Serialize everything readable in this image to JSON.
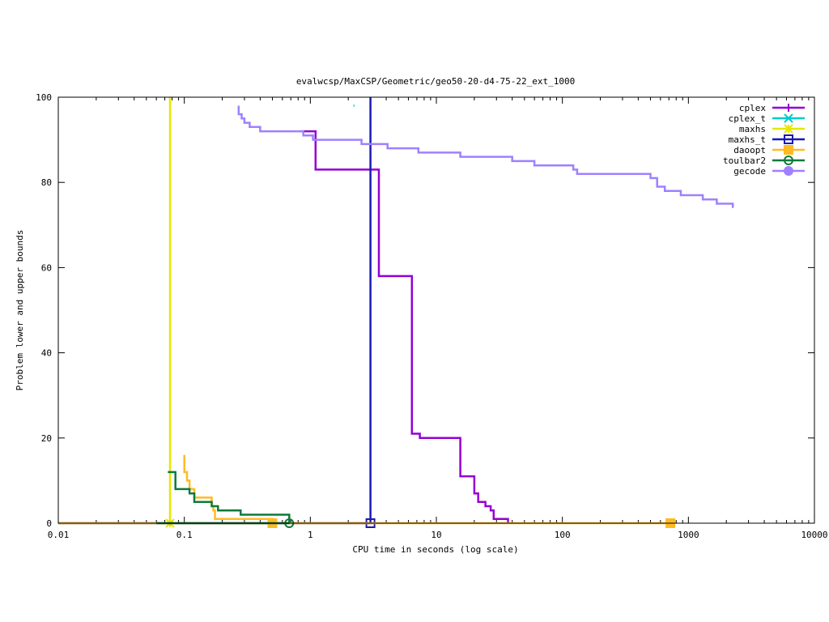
{
  "chart_data": {
    "type": "line",
    "title": "evalwcsp/MaxCSP/Geometric/geo50-20-d4-75-22_ext_1000",
    "xlabel": "CPU time in seconds (log scale)",
    "ylabel": "Problem lower and upper bounds",
    "xscale": "log",
    "xlim": [
      0.01,
      10000
    ],
    "ylim": [
      0,
      100
    ],
    "xticks": [
      {
        "value": 0.01,
        "label": "0.01"
      },
      {
        "value": 0.1,
        "label": "0.1"
      },
      {
        "value": 1,
        "label": "1"
      },
      {
        "value": 10,
        "label": "10"
      },
      {
        "value": 100,
        "label": "100"
      },
      {
        "value": 1000,
        "label": "1000"
      },
      {
        "value": 10000,
        "label": "10000"
      }
    ],
    "yticks": [
      {
        "value": 0,
        "label": "0"
      },
      {
        "value": 20,
        "label": "20"
      },
      {
        "value": 40,
        "label": "40"
      },
      {
        "value": 60,
        "label": "60"
      },
      {
        "value": 80,
        "label": "80"
      },
      {
        "value": 100,
        "label": "100"
      }
    ],
    "legend_position": "top-right",
    "series": [
      {
        "name": "cplex",
        "color": "#9400d3",
        "marker": "plus",
        "points": [
          [
            0.85,
            92
          ],
          [
            1.1,
            92
          ],
          [
            1.1,
            83
          ],
          [
            3.5,
            83
          ],
          [
            3.5,
            58
          ],
          [
            6.4,
            58
          ],
          [
            6.4,
            21
          ],
          [
            7.4,
            21
          ],
          [
            7.4,
            20
          ],
          [
            15.5,
            20
          ],
          [
            15.5,
            11
          ],
          [
            20,
            11
          ],
          [
            20,
            7
          ],
          [
            21.5,
            7
          ],
          [
            21.5,
            5
          ],
          [
            24.5,
            5
          ],
          [
            24.5,
            4
          ],
          [
            27,
            4
          ],
          [
            27,
            3
          ],
          [
            28.5,
            3
          ],
          [
            28.5,
            1
          ],
          [
            37,
            1
          ],
          [
            37,
            0
          ]
        ],
        "markers": []
      },
      {
        "name": "cplex_t",
        "color": "#00cccc",
        "marker": "x",
        "points": [
          [
            2.2,
            98
          ],
          [
            2.24,
            98
          ]
        ],
        "markers": []
      },
      {
        "name": "maxhs",
        "color": "#e6e600",
        "marker": "star",
        "points": [
          [
            0.077,
            100
          ],
          [
            0.077,
            0
          ]
        ],
        "markers": [
          [
            0.077,
            0
          ]
        ]
      },
      {
        "name": "maxhs_t",
        "color": "#1a1ab3",
        "marker": "square",
        "points": [
          [
            0.01,
            0
          ],
          [
            3.0,
            0
          ],
          [
            3.0,
            100
          ]
        ],
        "markers": [
          [
            3.0,
            0
          ]
        ]
      },
      {
        "name": "daoopt",
        "color": "#ffbb22",
        "marker": "filled-square",
        "points": [
          [
            0.01,
            0
          ],
          [
            720,
            0
          ]
        ],
        "extra_segments": [
          [
            [
              0.1,
              16
            ],
            [
              0.1,
              12
            ],
            [
              0.105,
              12
            ],
            [
              0.105,
              10
            ],
            [
              0.11,
              10
            ],
            [
              0.11,
              8
            ],
            [
              0.12,
              8
            ],
            [
              0.12,
              6
            ],
            [
              0.165,
              6
            ],
            [
              0.165,
              4
            ],
            [
              0.17,
              4
            ],
            [
              0.17,
              3
            ],
            [
              0.175,
              3
            ],
            [
              0.175,
              1
            ],
            [
              0.5,
              1
            ],
            [
              0.5,
              0
            ]
          ]
        ],
        "markers": [
          [
            0.5,
            0
          ],
          [
            720,
            0
          ]
        ]
      },
      {
        "name": "toulbar2",
        "color": "#0f7a3a",
        "marker": "circle",
        "points": [
          [
            0.074,
            12
          ],
          [
            0.085,
            12
          ],
          [
            0.085,
            8
          ],
          [
            0.11,
            8
          ],
          [
            0.11,
            7
          ],
          [
            0.12,
            7
          ],
          [
            0.12,
            5
          ],
          [
            0.165,
            5
          ],
          [
            0.165,
            4
          ],
          [
            0.185,
            4
          ],
          [
            0.185,
            3
          ],
          [
            0.28,
            3
          ],
          [
            0.28,
            2
          ],
          [
            0.68,
            2
          ],
          [
            0.68,
            0
          ]
        ],
        "extra_segments": [
          [
            [
              0.06,
              0
            ],
            [
              0.68,
              0
            ]
          ]
        ],
        "markers": [
          [
            0.68,
            0
          ]
        ]
      },
      {
        "name": "gecode",
        "color": "#9f80ff",
        "marker": "filled-circle",
        "points": [
          [
            0.27,
            98
          ],
          [
            0.27,
            96
          ],
          [
            0.285,
            96
          ],
          [
            0.285,
            95
          ],
          [
            0.3,
            95
          ],
          [
            0.3,
            94
          ],
          [
            0.33,
            94
          ],
          [
            0.33,
            93
          ],
          [
            0.4,
            93
          ],
          [
            0.4,
            92
          ],
          [
            0.88,
            92
          ],
          [
            0.88,
            91
          ],
          [
            1.05,
            91
          ],
          [
            1.05,
            90
          ],
          [
            2.55,
            90
          ],
          [
            2.55,
            89
          ],
          [
            4.1,
            89
          ],
          [
            4.1,
            88
          ],
          [
            7.2,
            88
          ],
          [
            7.2,
            87
          ],
          [
            15.5,
            87
          ],
          [
            15.5,
            86
          ],
          [
            40,
            86
          ],
          [
            40,
            85
          ],
          [
            60,
            85
          ],
          [
            60,
            84
          ],
          [
            122,
            84
          ],
          [
            122,
            83
          ],
          [
            131,
            83
          ],
          [
            131,
            82
          ],
          [
            500,
            82
          ],
          [
            500,
            81
          ],
          [
            565,
            81
          ],
          [
            565,
            79
          ],
          [
            650,
            79
          ],
          [
            650,
            78
          ],
          [
            870,
            78
          ],
          [
            870,
            77
          ],
          [
            1300,
            77
          ],
          [
            1300,
            76
          ],
          [
            1680,
            76
          ],
          [
            1680,
            75
          ],
          [
            2250,
            75
          ],
          [
            2250,
            74
          ]
        ],
        "markers": []
      }
    ]
  }
}
